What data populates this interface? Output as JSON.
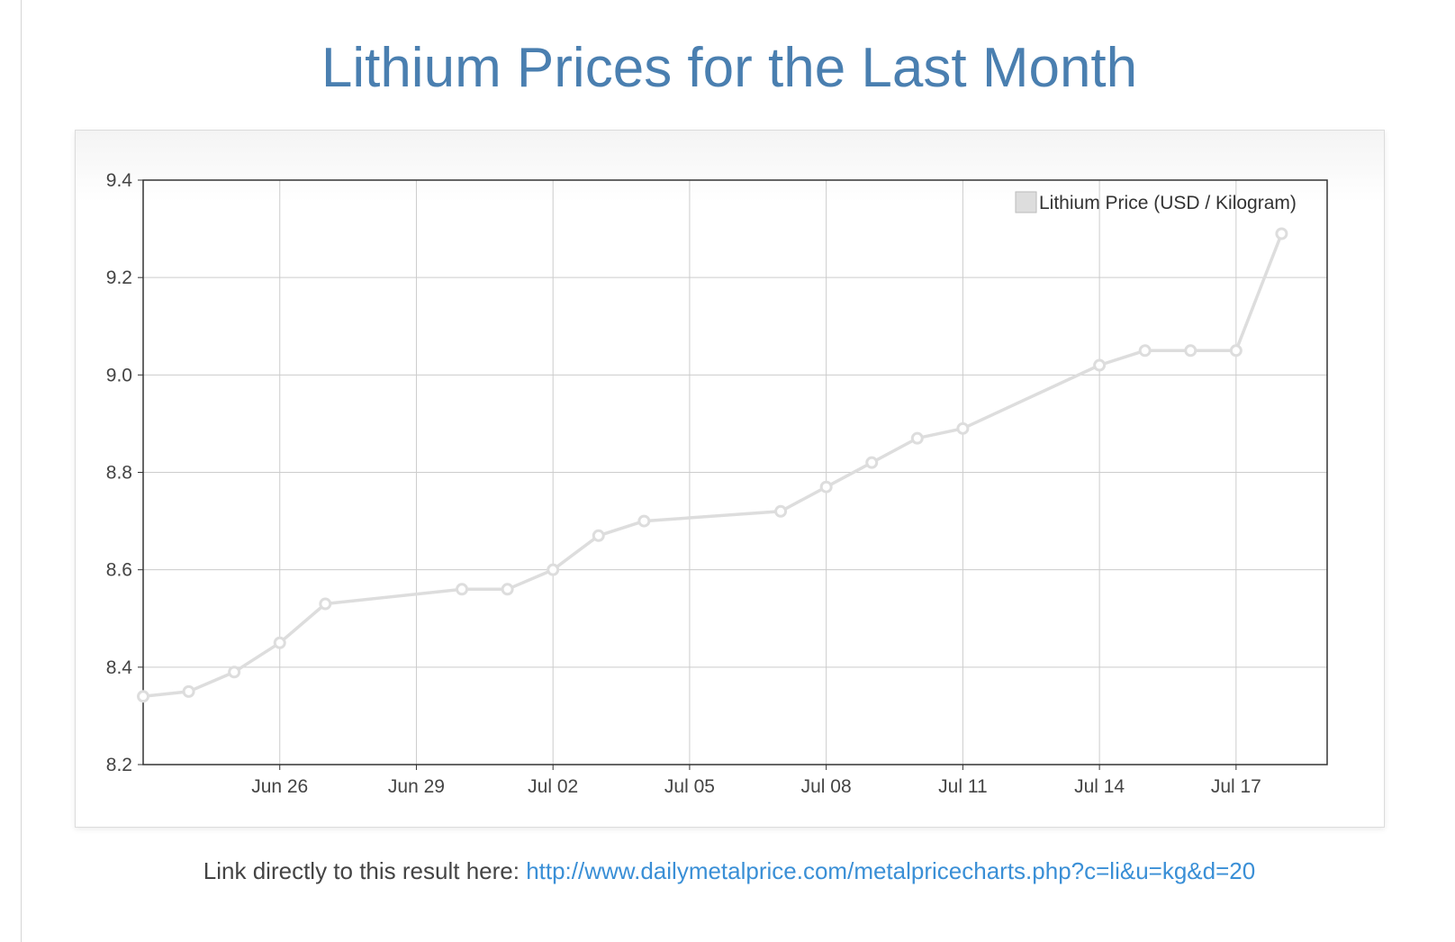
{
  "page": {
    "title": "Lithium Prices for the Last Month",
    "footer_prefix": "Link directly to this result here: ",
    "footer_link": "http://www.dailymetalprice.com/metalpricecharts.php?c=li&u=kg&d=20"
  },
  "colors": {
    "title": "#4a7fb0",
    "line": "#dddddd",
    "grid": "#cccccc",
    "axis": "#333333",
    "link": "#3a8fd6"
  },
  "chart_data": {
    "type": "line",
    "xlabel": "",
    "ylabel": "",
    "ylim": [
      8.2,
      9.4
    ],
    "xlim": [
      "2018-06-23",
      "2018-07-19"
    ],
    "yticks": [
      "8.2",
      "8.4",
      "8.6",
      "8.8",
      "9.0",
      "9.2",
      "9.4"
    ],
    "xticks": [
      {
        "date": "2018-06-26",
        "label": "Jun 26"
      },
      {
        "date": "2018-06-29",
        "label": "Jun 29"
      },
      {
        "date": "2018-07-02",
        "label": "Jul 02"
      },
      {
        "date": "2018-07-05",
        "label": "Jul 05"
      },
      {
        "date": "2018-07-08",
        "label": "Jul 08"
      },
      {
        "date": "2018-07-11",
        "label": "Jul 11"
      },
      {
        "date": "2018-07-14",
        "label": "Jul 14"
      },
      {
        "date": "2018-07-17",
        "label": "Jul 17"
      }
    ],
    "grid": true,
    "legend_position": "top-right",
    "series": [
      {
        "name": "Lithium Price (USD / Kilogram)",
        "points": [
          {
            "x": "2018-06-23",
            "y": 8.34
          },
          {
            "x": "2018-06-24",
            "y": 8.35
          },
          {
            "x": "2018-06-25",
            "y": 8.39
          },
          {
            "x": "2018-06-26",
            "y": 8.45
          },
          {
            "x": "2018-06-27",
            "y": 8.53
          },
          {
            "x": "2018-06-30",
            "y": 8.56
          },
          {
            "x": "2018-07-01",
            "y": 8.56
          },
          {
            "x": "2018-07-02",
            "y": 8.6
          },
          {
            "x": "2018-07-03",
            "y": 8.67
          },
          {
            "x": "2018-07-04",
            "y": 8.7
          },
          {
            "x": "2018-07-07",
            "y": 8.72
          },
          {
            "x": "2018-07-08",
            "y": 8.77
          },
          {
            "x": "2018-07-09",
            "y": 8.82
          },
          {
            "x": "2018-07-10",
            "y": 8.87
          },
          {
            "x": "2018-07-11",
            "y": 8.89
          },
          {
            "x": "2018-07-14",
            "y": 9.02
          },
          {
            "x": "2018-07-15",
            "y": 9.05
          },
          {
            "x": "2018-07-16",
            "y": 9.05
          },
          {
            "x": "2018-07-17",
            "y": 9.05
          },
          {
            "x": "2018-07-18",
            "y": 9.29
          }
        ]
      }
    ]
  }
}
